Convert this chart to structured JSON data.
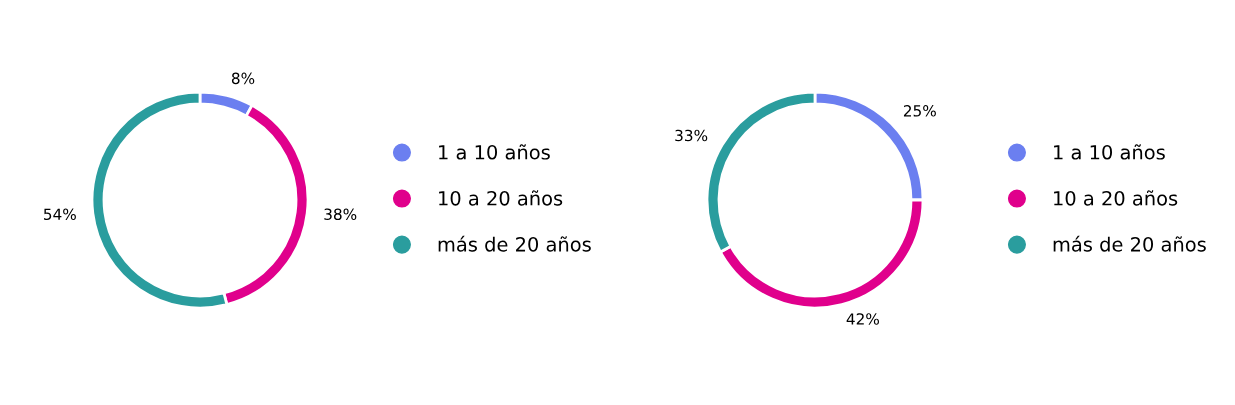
{
  "chart_data": [
    {
      "type": "donut",
      "categories": [
        "1 a 10 años",
        "10 a 20 años",
        "más de 20 años"
      ],
      "values": [
        8,
        38,
        54
      ],
      "value_labels": [
        "8%",
        "38%",
        "54%"
      ],
      "colors": [
        "#6b7ff0",
        "#e0008c",
        "#2a9d9e"
      ],
      "legend": "right"
    },
    {
      "type": "donut",
      "categories": [
        "1 a 10 años",
        "10 a 20 años",
        "más de 20 años"
      ],
      "values": [
        25,
        42,
        33
      ],
      "value_labels": [
        "25%",
        "42%",
        "33%"
      ],
      "colors": [
        "#6b7ff0",
        "#e0008c",
        "#2a9d9e"
      ],
      "legend": "right"
    }
  ]
}
